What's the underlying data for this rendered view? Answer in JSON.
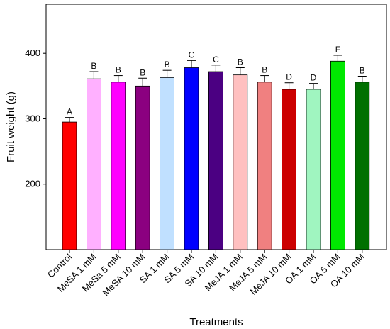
{
  "chart_data": {
    "type": "bar",
    "title": "",
    "xlabel": "Treatments",
    "ylabel": "Fruit weight (g)",
    "ylim": [
      100,
      475
    ],
    "yticks": [
      200,
      300,
      400
    ],
    "categories": [
      "Control",
      "MeSA 1 mM",
      "MeSa 5 mM",
      "MeSA 10 mM",
      "SA 1 mM",
      "SA 5 mM",
      "SA 10 mM",
      "MeJA 1 mM",
      "MeJA 5 mM",
      "MeJA 10 mM",
      "OA 1 mM",
      "OA 5 mM",
      "OA 10 mM"
    ],
    "values": [
      295,
      361,
      356,
      350,
      363,
      378,
      372,
      367,
      356,
      345,
      345,
      388,
      356
    ],
    "errors": [
      7,
      11,
      10,
      12,
      11,
      11,
      10,
      11,
      10,
      10,
      9,
      9,
      9
    ],
    "significance_labels": [
      "A",
      "B",
      "B",
      "B",
      "B",
      "C",
      "C",
      "B",
      "B",
      "D",
      "D",
      "F",
      "B"
    ],
    "colors": [
      "#ff0000",
      "#ffb0ff",
      "#ff00ff",
      "#8b0080",
      "#c0e0ff",
      "#0000ff",
      "#4b0082",
      "#ffc0c0",
      "#f08080",
      "#cc0000",
      "#a0f5c0",
      "#00e800",
      "#007000"
    ],
    "grid": false
  }
}
